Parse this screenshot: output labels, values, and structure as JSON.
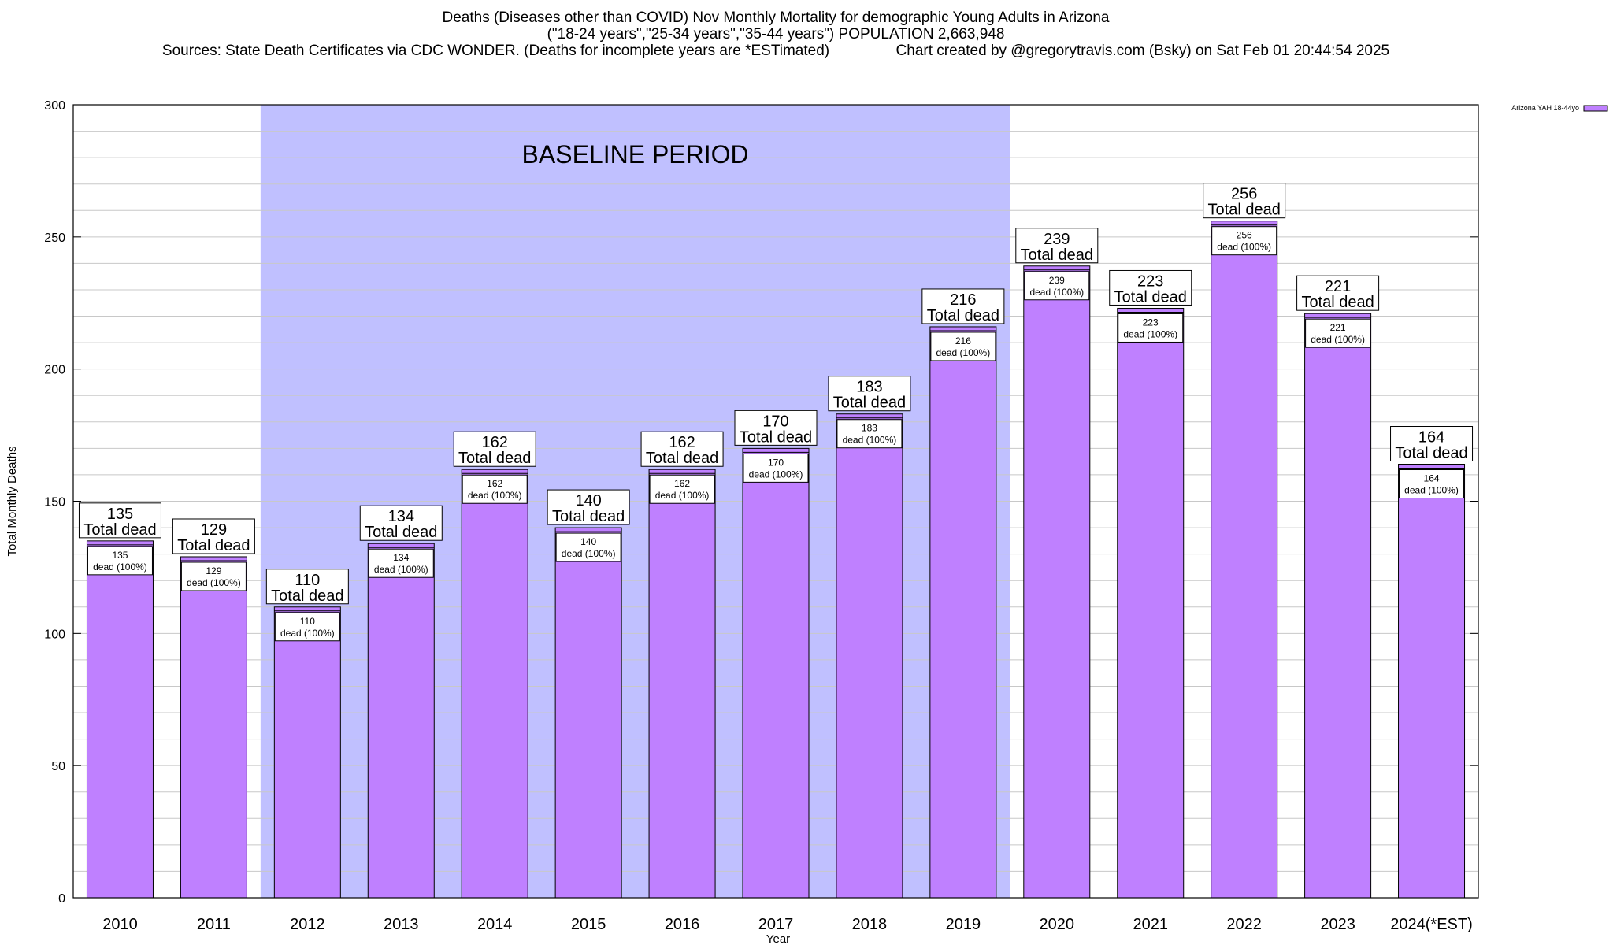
{
  "title_lines": [
    "Deaths (Diseases other than COVID) Nov Monthly Mortality for demographic Young Adults in Arizona",
    "(\"18-24 years\",\"25-34 years\",\"35-44 years\") POPULATION 2,663,948",
    "Sources: State Death Certificates via CDC WONDER. (Deaths for incomplete years are *ESTimated)                Chart created by @gregorytravis.com (Bsky) on Sat Feb 01 20:44:54 2025"
  ],
  "colors": {
    "bar": "#bf80ff",
    "baseline": "#c0c0ff",
    "grid": "#c8c8c8"
  },
  "chart_data": {
    "type": "bar",
    "title": "Deaths (Diseases other than COVID) Nov Monthly Mortality for demographic Young Adults in Arizona",
    "xlabel": "Year",
    "ylabel": "Total Monthly Deaths",
    "ylim": [
      0,
      300
    ],
    "yticks": [
      0,
      50,
      100,
      150,
      200,
      250,
      300
    ],
    "grid": true,
    "legend_position": "top-right",
    "categories": [
      "2010",
      "2011",
      "2012",
      "2013",
      "2014",
      "2015",
      "2016",
      "2017",
      "2018",
      "2019",
      "2020",
      "2021",
      "2022",
      "2023",
      "2024(*EST)"
    ],
    "series": [
      {
        "name": "Arizona YAH 18-44yo",
        "values": [
          135,
          129,
          110,
          134,
          162,
          140,
          162,
          170,
          183,
          216,
          239,
          223,
          256,
          221,
          164
        ]
      }
    ],
    "total_label_suffix": "Total dead",
    "inner_label_suffix": "dead (100%)",
    "annotation": {
      "text": "BASELINE PERIOD",
      "from_category": "2012",
      "to_category": "2019"
    }
  }
}
